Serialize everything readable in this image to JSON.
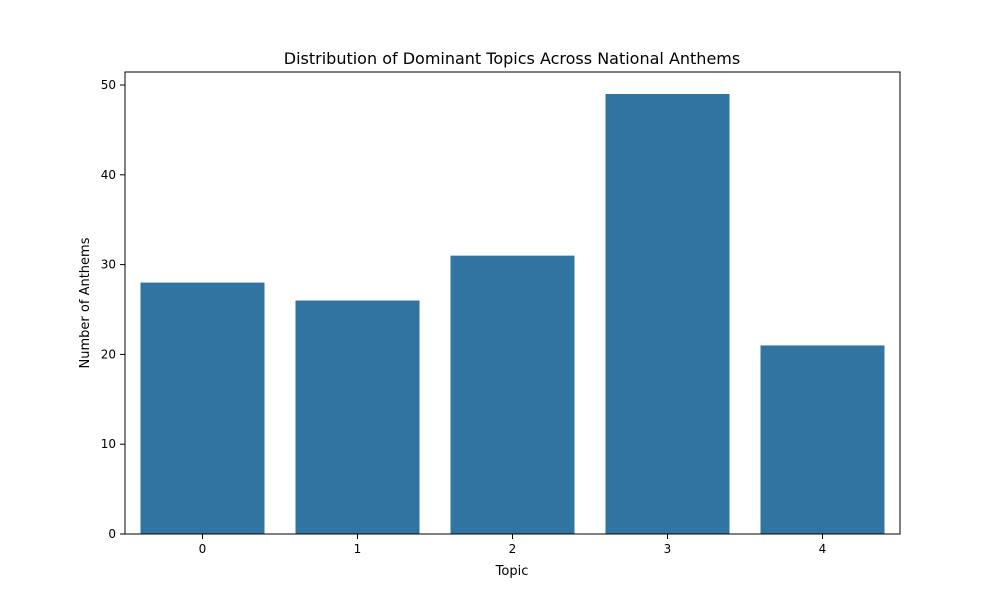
{
  "chart_data": {
    "type": "bar",
    "title": "Distribution of Dominant Topics Across National Anthems",
    "xlabel": "Topic",
    "ylabel": "Number of Anthems",
    "categories": [
      "0",
      "1",
      "2",
      "3",
      "4"
    ],
    "values": [
      28,
      26,
      31,
      49,
      21
    ],
    "ylim": [
      0,
      51.45
    ],
    "yticks": [
      0,
      10,
      20,
      30,
      40,
      50
    ],
    "grid": false,
    "legend": "none",
    "bar_color": "#3274a1"
  }
}
